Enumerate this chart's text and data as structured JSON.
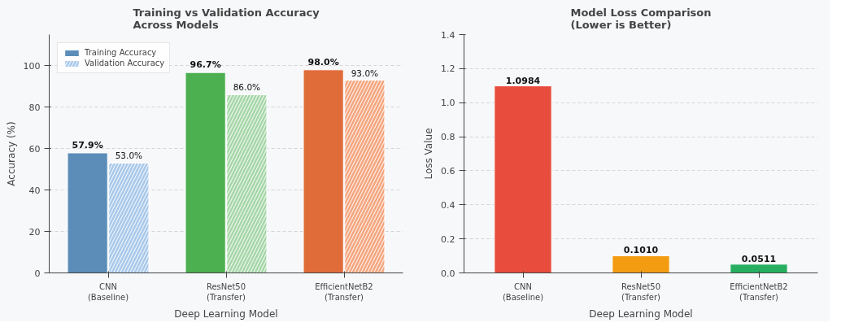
{
  "chart_data": [
    {
      "type": "bar",
      "title": "Training vs Validation Accuracy\nAcross Models",
      "xlabel": "Deep Learning Model",
      "ylabel": "Accuracy (%)",
      "categories": [
        "CNN\n(Baseline)",
        "ResNet50\n(Transfer)",
        "EfficientNetB2\n(Transfer)"
      ],
      "series": [
        {
          "name": "Training Accuracy",
          "color": "#5b8db8",
          "colors": [
            "#5b8db8",
            "#4caf50",
            "#e06c3a"
          ],
          "values": [
            57.9,
            96.7,
            98.0
          ],
          "value_labels": [
            "57.9%",
            "96.7%",
            "98.0%"
          ]
        },
        {
          "name": "Validation Accuracy",
          "color": "#a8c8ea",
          "colors": [
            "#a8c8ea",
            "#a5d6a7",
            "#f4a57e"
          ],
          "values": [
            53.0,
            86.0,
            93.0
          ],
          "value_labels": [
            "53.0%",
            "86.0%",
            "93.0%"
          ]
        }
      ],
      "ylim": [
        0,
        115
      ],
      "yticks": [
        0,
        20,
        40,
        60,
        80,
        100
      ],
      "grid": "y",
      "legend": "top left"
    },
    {
      "type": "bar",
      "title": "Model Loss Comparison\n(Lower is Better)",
      "xlabel": "Deep Learning Model",
      "ylabel": "Loss Value",
      "categories": [
        "CNN\n(Baseline)",
        "ResNet50\n(Transfer)",
        "EfficientNetB2\n(Transfer)"
      ],
      "values": [
        1.0984,
        0.101,
        0.0511
      ],
      "colors": [
        "#e74c3c",
        "#f39c12",
        "#27ae60"
      ],
      "value_labels": [
        "1.0984",
        "0.1010",
        "0.0511"
      ],
      "ylim": [
        0,
        1.4
      ],
      "yticks": [
        {
          "value": 0,
          "label": "0.0"
        },
        0.2,
        0.4,
        0.6,
        0.8,
        {
          "value": 1,
          "label": "1.0"
        },
        1.2,
        1.4
      ],
      "grid": "y"
    }
  ]
}
